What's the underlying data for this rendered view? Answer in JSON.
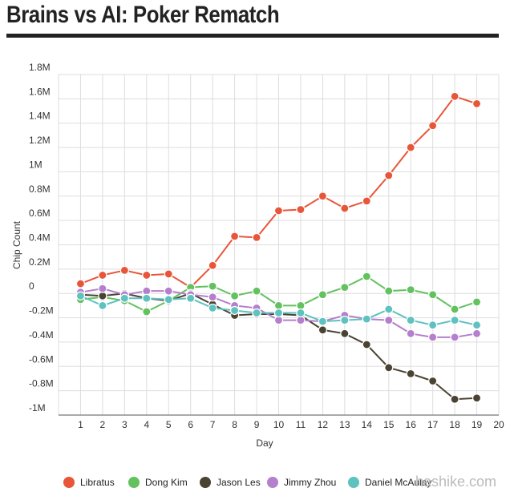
{
  "page": {
    "title": "Brains vs AI: Poker Rematch",
    "watermark": "hashike.com"
  },
  "chart_data": {
    "type": "line",
    "title": "Brains vs AI: Poker Rematch",
    "xlabel": "Day",
    "ylabel": "Chip Count",
    "xlim": [
      0,
      20
    ],
    "ylim": [
      -1000000,
      1800000
    ],
    "x_ticks": [
      1,
      2,
      3,
      4,
      5,
      6,
      7,
      8,
      9,
      10,
      11,
      12,
      13,
      14,
      15,
      16,
      17,
      18,
      19,
      20
    ],
    "y_ticks": [
      {
        "value": 1800000,
        "label": "1.8M"
      },
      {
        "value": 1600000,
        "label": "1.6M"
      },
      {
        "value": 1400000,
        "label": "1.4M"
      },
      {
        "value": 1200000,
        "label": "1.2M"
      },
      {
        "value": 1000000,
        "label": "1M"
      },
      {
        "value": 800000,
        "label": "0.8M"
      },
      {
        "value": 600000,
        "label": "0.6M"
      },
      {
        "value": 400000,
        "label": "0.4M"
      },
      {
        "value": 200000,
        "label": "0.2M"
      },
      {
        "value": 0,
        "label": "0"
      },
      {
        "value": -200000,
        "label": "-0.2M"
      },
      {
        "value": -400000,
        "label": "-0.4M"
      },
      {
        "value": -600000,
        "label": "-0.6M"
      },
      {
        "value": -800000,
        "label": "-0.8M"
      },
      {
        "value": -1000000,
        "label": "-1M"
      }
    ],
    "grid": true,
    "legend_position": "bottom",
    "x": [
      1,
      2,
      3,
      4,
      5,
      6,
      7,
      8,
      9,
      10,
      11,
      12,
      13,
      14,
      15,
      16,
      17,
      18,
      19
    ],
    "series": [
      {
        "name": "Libratus",
        "color": "#e8563a",
        "values": [
          80000,
          150000,
          190000,
          150000,
          160000,
          50000,
          230000,
          470000,
          460000,
          680000,
          690000,
          800000,
          700000,
          760000,
          970000,
          1200000,
          1380000,
          1620000,
          1560000
        ]
      },
      {
        "name": "Dong Kim",
        "color": "#63c15f",
        "values": [
          -50000,
          -30000,
          -60000,
          -150000,
          -60000,
          50000,
          60000,
          -20000,
          20000,
          -100000,
          -100000,
          -10000,
          50000,
          140000,
          20000,
          30000,
          -10000,
          -130000,
          -70000
        ]
      },
      {
        "name": "Jason Les",
        "color": "#4a4332",
        "values": [
          -10000,
          -20000,
          0,
          -40000,
          -60000,
          0,
          -90000,
          -180000,
          -170000,
          -170000,
          -180000,
          -300000,
          -330000,
          -420000,
          -610000,
          -660000,
          -720000,
          -870000,
          -860000
        ]
      },
      {
        "name": "Jimmy Zhou",
        "color": "#b57fcd",
        "values": [
          10000,
          40000,
          -10000,
          20000,
          20000,
          -10000,
          -30000,
          -100000,
          -120000,
          -220000,
          -220000,
          -230000,
          -180000,
          -210000,
          -220000,
          -330000,
          -360000,
          -360000,
          -330000
        ]
      },
      {
        "name": "Daniel McAulay",
        "color": "#5ec2bf",
        "values": [
          -20000,
          -100000,
          -40000,
          -40000,
          -50000,
          -40000,
          -120000,
          -140000,
          -160000,
          -160000,
          -160000,
          -230000,
          -220000,
          -210000,
          -130000,
          -220000,
          -260000,
          -220000,
          -260000
        ]
      }
    ]
  }
}
